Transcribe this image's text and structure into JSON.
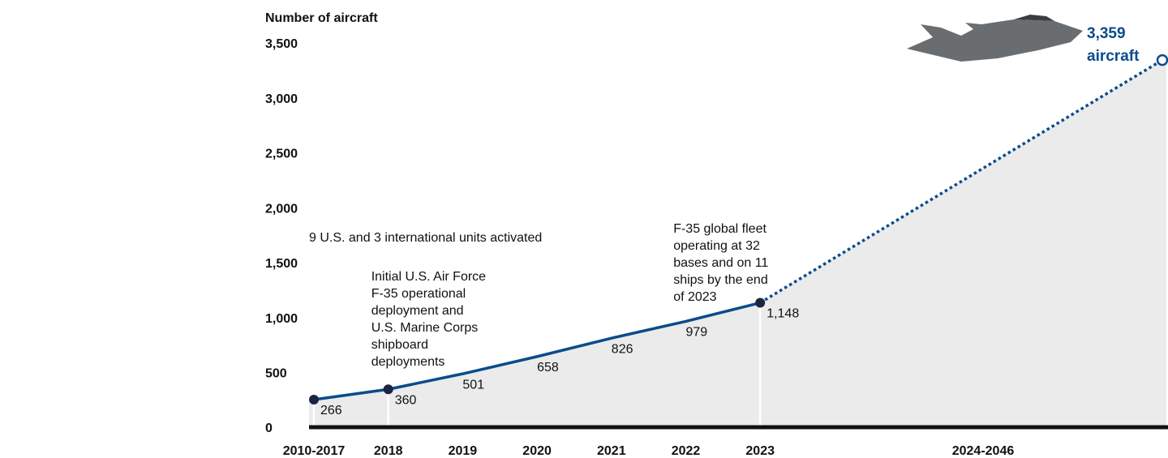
{
  "chart_data": {
    "type": "line",
    "y_axis_title": "Number of aircraft",
    "categories": [
      "2010-2017",
      "2018",
      "2019",
      "2020",
      "2021",
      "2022",
      "2023",
      "2024-2046"
    ],
    "series": [
      {
        "color": "#0b4b8c",
        "values": [
          266,
          360,
          501,
          658,
          826,
          979,
          1148,
          3359
        ],
        "value_labels": [
          "266",
          "360",
          "501",
          "658",
          "826",
          "979",
          "1,148",
          "3,359"
        ]
      }
    ],
    "end_label_unit": "aircraft",
    "projection_from": "2023",
    "markers_at": [
      "2010-2017",
      "2018",
      "2023"
    ],
    "marker_color": "#1b2442",
    "area_color": "#ebebeb",
    "ylim": [
      0,
      3500
    ],
    "yticks": [
      0,
      500,
      {
        "value": 1000,
        "label": "1,000"
      },
      {
        "value": 1500,
        "label": "1,500"
      },
      {
        "value": 2000,
        "label": "2,000"
      },
      {
        "value": 2500,
        "label": "2,500"
      },
      {
        "value": 3000,
        "label": "3,000"
      },
      {
        "value": 3500,
        "label": "3,500"
      }
    ],
    "annotations": [
      {
        "x": "2010-2017",
        "lines": [
          "9 U.S. and 3 international units activated"
        ]
      },
      {
        "x": "2018",
        "lines": [
          "Initial U.S. Air Force",
          "F-35 operational",
          "deployment and",
          "U.S. Marine Corps",
          "shipboard",
          "deployments"
        ]
      },
      {
        "x": "2023",
        "lines": [
          "F-35 global fleet",
          "operating at 32",
          "bases and on 11",
          "ships by the end",
          "of 2023"
        ]
      }
    ]
  }
}
